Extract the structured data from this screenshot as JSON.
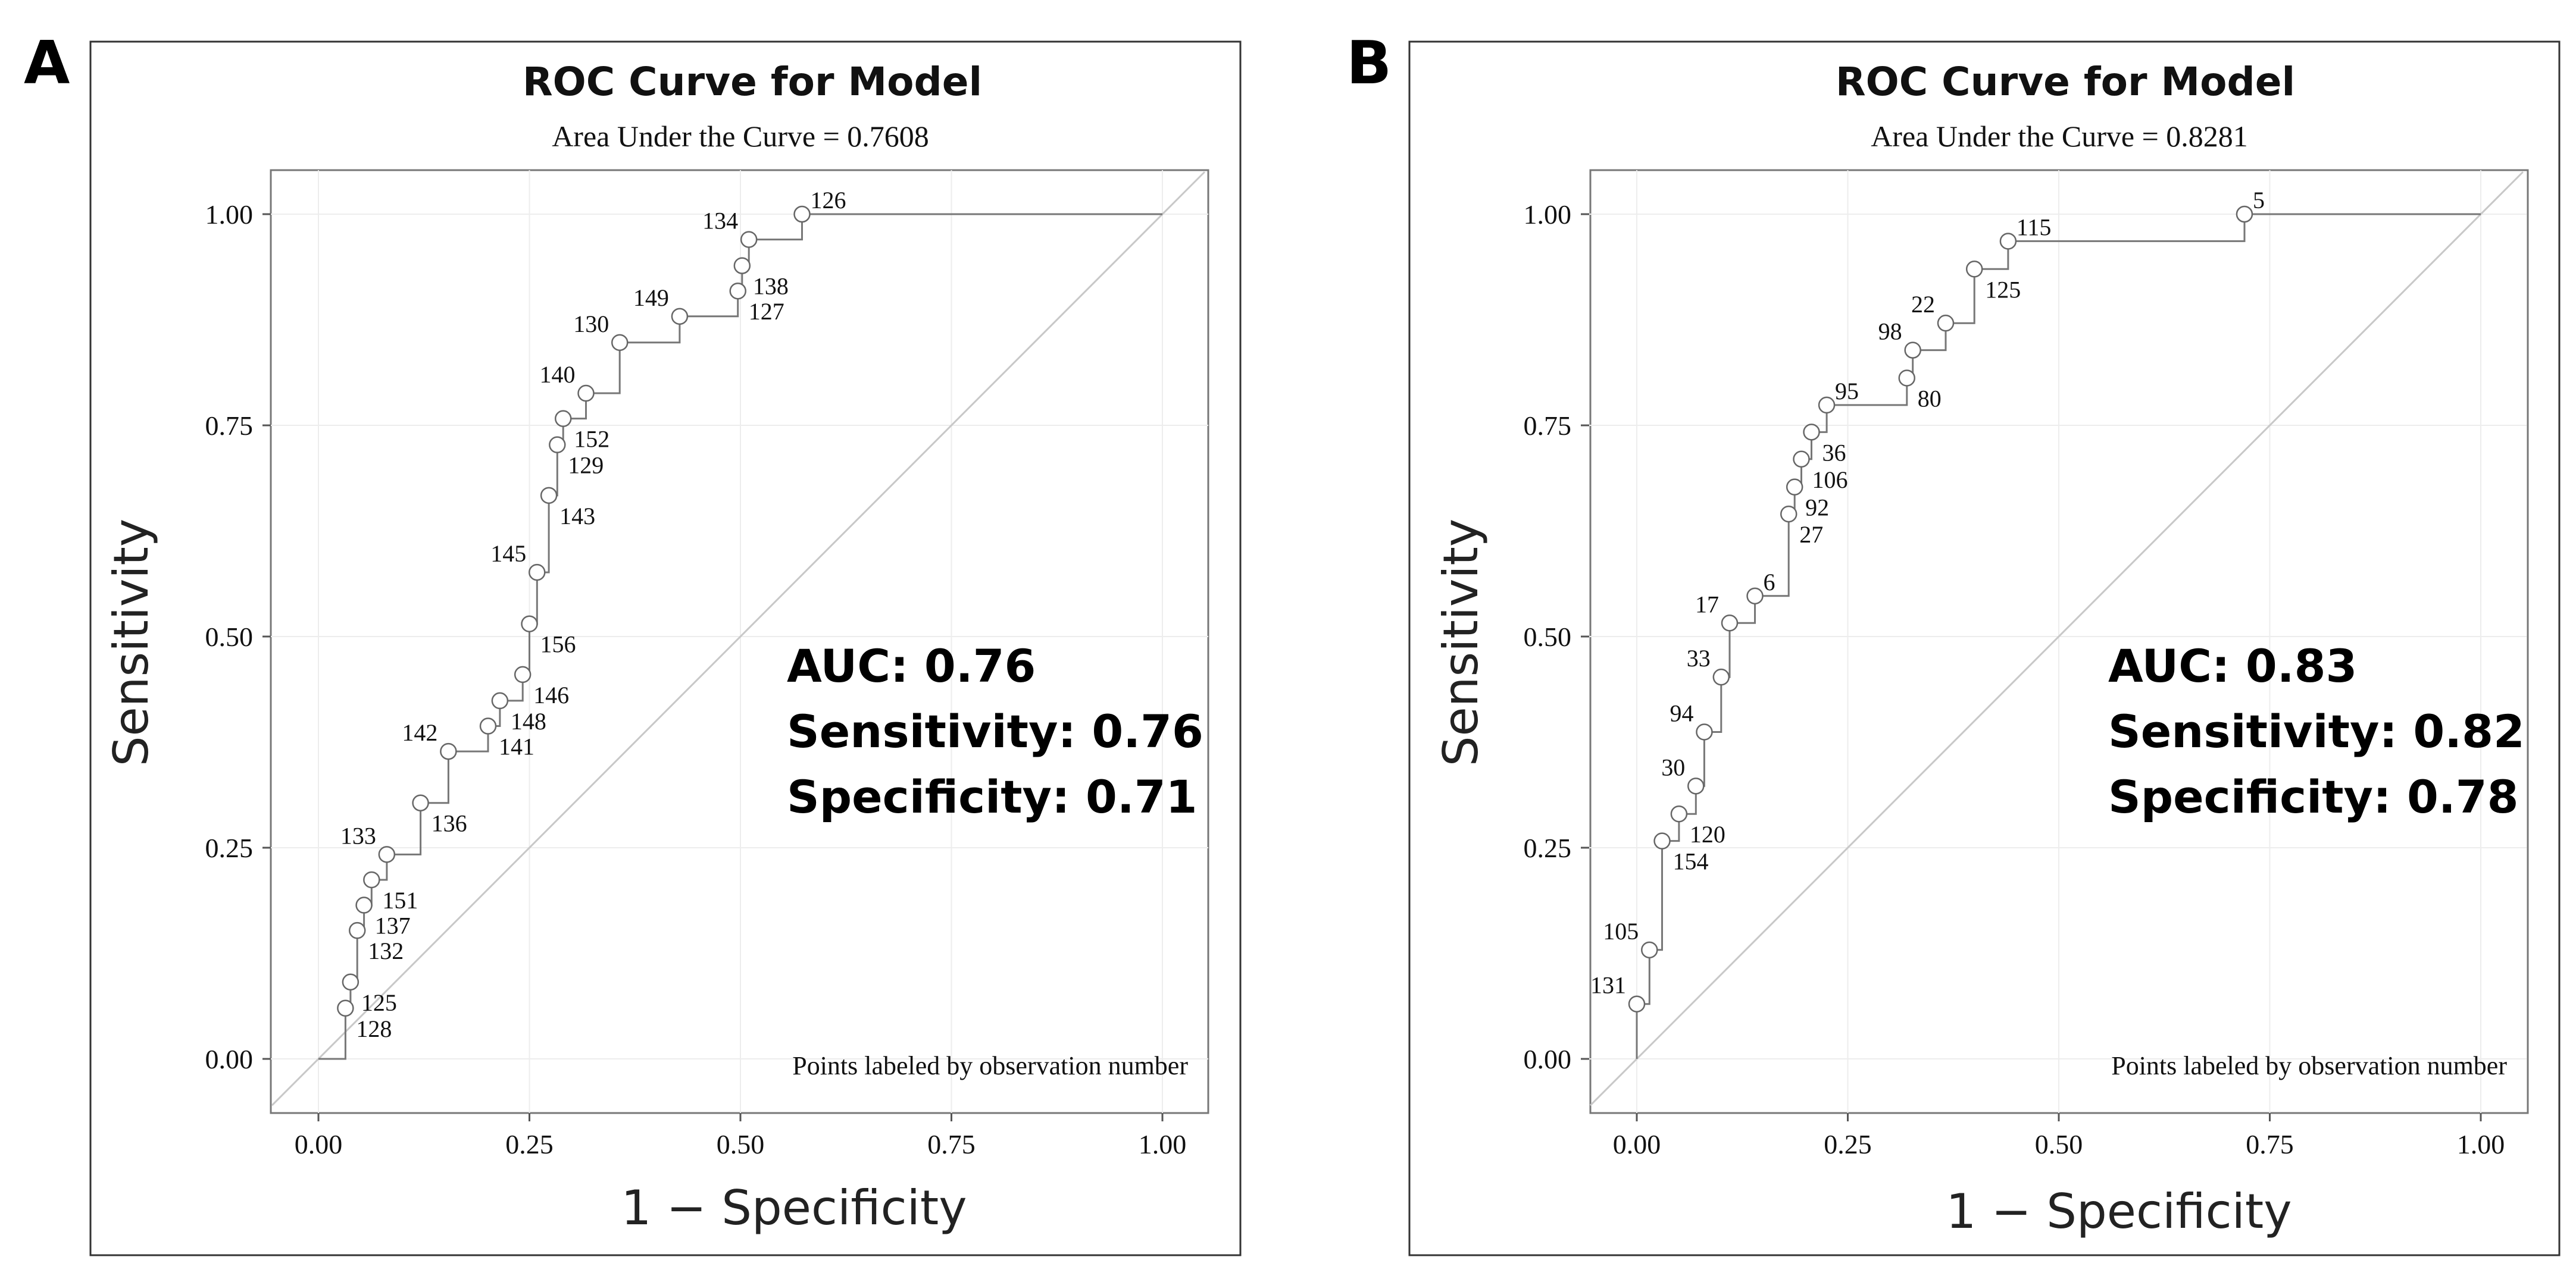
{
  "chart_data": [
    {
      "type": "line",
      "panel_label": "A",
      "title": "ROC Curve for Model",
      "subtitle": "Area Under the Curve = 0.7608",
      "xlabel": "1 − Specificity",
      "ylabel": "Sensitivity",
      "xlim": [
        0,
        1
      ],
      "ylim": [
        0,
        1
      ],
      "x_ticks": [
        "0.00",
        "0.25",
        "0.50",
        "0.75",
        "1.00"
      ],
      "y_ticks": [
        "0.00",
        "0.25",
        "0.50",
        "0.75",
        "1.00"
      ],
      "grid": true,
      "footnote": "Points labeled by observation number",
      "stats": [
        "AUC: 0.76",
        "Sensitivity: 0.76",
        "Specificity: 0.71"
      ],
      "reference_line": [
        [
          0,
          0
        ],
        [
          1,
          1
        ]
      ],
      "curve": [
        [
          0,
          0
        ],
        [
          0.032,
          0
        ],
        [
          0.032,
          0.06
        ],
        [
          0.038,
          0.06
        ],
        [
          0.038,
          0.091
        ],
        [
          0.046,
          0.091
        ],
        [
          0.046,
          0.152
        ],
        [
          0.054,
          0.152
        ],
        [
          0.054,
          0.182
        ],
        [
          0.063,
          0.182
        ],
        [
          0.063,
          0.212
        ],
        [
          0.081,
          0.212
        ],
        [
          0.081,
          0.242
        ],
        [
          0.121,
          0.242
        ],
        [
          0.121,
          0.303
        ],
        [
          0.154,
          0.303
        ],
        [
          0.154,
          0.364
        ],
        [
          0.201,
          0.364
        ],
        [
          0.201,
          0.394
        ],
        [
          0.215,
          0.394
        ],
        [
          0.215,
          0.424
        ],
        [
          0.242,
          0.424
        ],
        [
          0.242,
          0.455
        ],
        [
          0.25,
          0.455
        ],
        [
          0.25,
          0.515
        ],
        [
          0.259,
          0.515
        ],
        [
          0.259,
          0.576
        ],
        [
          0.273,
          0.576
        ],
        [
          0.273,
          0.667
        ],
        [
          0.283,
          0.667
        ],
        [
          0.283,
          0.727
        ],
        [
          0.29,
          0.727
        ],
        [
          0.29,
          0.758
        ],
        [
          0.317,
          0.758
        ],
        [
          0.317,
          0.788
        ],
        [
          0.357,
          0.788
        ],
        [
          0.357,
          0.848
        ],
        [
          0.428,
          0.848
        ],
        [
          0.428,
          0.879
        ],
        [
          0.497,
          0.879
        ],
        [
          0.497,
          0.909
        ],
        [
          0.502,
          0.909
        ],
        [
          0.502,
          0.939
        ],
        [
          0.51,
          0.939
        ],
        [
          0.51,
          0.97
        ],
        [
          0.573,
          0.97
        ],
        [
          0.573,
          1.0
        ],
        [
          1,
          1
        ]
      ],
      "points": [
        {
          "x": 0.032,
          "y": 0.06,
          "label": "128",
          "pos": "br"
        },
        {
          "x": 0.038,
          "y": 0.091,
          "label": "125",
          "pos": "br"
        },
        {
          "x": 0.046,
          "y": 0.152,
          "label": "132",
          "pos": "br"
        },
        {
          "x": 0.054,
          "y": 0.182,
          "label": "137",
          "pos": "br"
        },
        {
          "x": 0.063,
          "y": 0.212,
          "label": "151",
          "pos": "br"
        },
        {
          "x": 0.081,
          "y": 0.242,
          "label": "133",
          "pos": "tl"
        },
        {
          "x": 0.121,
          "y": 0.303,
          "label": "136",
          "pos": "br"
        },
        {
          "x": 0.154,
          "y": 0.364,
          "label": "142",
          "pos": "tl"
        },
        {
          "x": 0.201,
          "y": 0.394,
          "label": "141",
          "pos": "br"
        },
        {
          "x": 0.215,
          "y": 0.424,
          "label": "148",
          "pos": "br"
        },
        {
          "x": 0.242,
          "y": 0.455,
          "label": "146",
          "pos": "br"
        },
        {
          "x": 0.25,
          "y": 0.515,
          "label": "156",
          "pos": "br"
        },
        {
          "x": 0.259,
          "y": 0.576,
          "label": "145",
          "pos": "tl"
        },
        {
          "x": 0.273,
          "y": 0.667,
          "label": "143",
          "pos": "br"
        },
        {
          "x": 0.283,
          "y": 0.727,
          "label": "129",
          "pos": "br"
        },
        {
          "x": 0.29,
          "y": 0.758,
          "label": "152",
          "pos": "br"
        },
        {
          "x": 0.317,
          "y": 0.788,
          "label": "140",
          "pos": "tl"
        },
        {
          "x": 0.357,
          "y": 0.848,
          "label": "130",
          "pos": "tl"
        },
        {
          "x": 0.428,
          "y": 0.879,
          "label": "149",
          "pos": "tl"
        },
        {
          "x": 0.497,
          "y": 0.909,
          "label": "127",
          "pos": "br"
        },
        {
          "x": 0.502,
          "y": 0.939,
          "label": "138",
          "pos": "br"
        },
        {
          "x": 0.51,
          "y": 0.97,
          "label": "134",
          "pos": "tl"
        },
        {
          "x": 0.573,
          "y": 1.0,
          "label": "126",
          "pos": "tr"
        }
      ]
    },
    {
      "type": "line",
      "panel_label": "B",
      "title": "ROC Curve for Model",
      "subtitle": "Area Under the Curve = 0.8281",
      "xlabel": "1 − Specificity",
      "ylabel": "Sensitivity",
      "xlim": [
        0,
        1
      ],
      "ylim": [
        0,
        1
      ],
      "x_ticks": [
        "0.00",
        "0.25",
        "0.50",
        "0.75",
        "1.00"
      ],
      "y_ticks": [
        "0.00",
        "0.25",
        "0.50",
        "0.75",
        "1.00"
      ],
      "grid": true,
      "footnote": "Points labeled by observation number",
      "stats": [
        "AUC: 0.83",
        "Sensitivity: 0.82",
        "Specificity: 0.78"
      ],
      "reference_line": [
        [
          0,
          0
        ],
        [
          1,
          1
        ]
      ],
      "curve": [
        [
          0,
          0
        ],
        [
          0,
          0.065
        ],
        [
          0.015,
          0.065
        ],
        [
          0.015,
          0.129
        ],
        [
          0.03,
          0.129
        ],
        [
          0.03,
          0.258
        ],
        [
          0.05,
          0.258
        ],
        [
          0.05,
          0.29
        ],
        [
          0.07,
          0.29
        ],
        [
          0.07,
          0.323
        ],
        [
          0.08,
          0.323
        ],
        [
          0.08,
          0.387
        ],
        [
          0.1,
          0.387
        ],
        [
          0.1,
          0.452
        ],
        [
          0.11,
          0.452
        ],
        [
          0.11,
          0.516
        ],
        [
          0.14,
          0.516
        ],
        [
          0.14,
          0.548
        ],
        [
          0.18,
          0.548
        ],
        [
          0.18,
          0.645
        ],
        [
          0.187,
          0.645
        ],
        [
          0.187,
          0.677
        ],
        [
          0.195,
          0.677
        ],
        [
          0.195,
          0.71
        ],
        [
          0.207,
          0.71
        ],
        [
          0.207,
          0.742
        ],
        [
          0.225,
          0.742
        ],
        [
          0.225,
          0.774
        ],
        [
          0.32,
          0.774
        ],
        [
          0.32,
          0.806
        ],
        [
          0.327,
          0.806
        ],
        [
          0.327,
          0.839
        ],
        [
          0.366,
          0.839
        ],
        [
          0.366,
          0.871
        ],
        [
          0.4,
          0.871
        ],
        [
          0.4,
          0.935
        ],
        [
          0.44,
          0.935
        ],
        [
          0.44,
          0.968
        ],
        [
          0.72,
          0.968
        ],
        [
          0.72,
          1.0
        ],
        [
          1,
          1
        ]
      ],
      "points": [
        {
          "x": 0,
          "y": 0.065,
          "label": "131",
          "pos": "tl"
        },
        {
          "x": 0.015,
          "y": 0.129,
          "label": "105",
          "pos": "tl"
        },
        {
          "x": 0.03,
          "y": 0.258,
          "label": "154",
          "pos": "br"
        },
        {
          "x": 0.05,
          "y": 0.29,
          "label": "120",
          "pos": "br"
        },
        {
          "x": 0.07,
          "y": 0.323,
          "label": "30",
          "pos": "tl"
        },
        {
          "x": 0.08,
          "y": 0.387,
          "label": "94",
          "pos": "tl"
        },
        {
          "x": 0.1,
          "y": 0.452,
          "label": "33",
          "pos": "tl"
        },
        {
          "x": 0.11,
          "y": 0.516,
          "label": "17",
          "pos": "tl"
        },
        {
          "x": 0.14,
          "y": 0.548,
          "label": "6",
          "pos": "tr"
        },
        {
          "x": 0.18,
          "y": 0.645,
          "label": "27",
          "pos": "br"
        },
        {
          "x": 0.187,
          "y": 0.677,
          "label": "92",
          "pos": "br"
        },
        {
          "x": 0.195,
          "y": 0.71,
          "label": "106",
          "pos": "br"
        },
        {
          "x": 0.207,
          "y": 0.742,
          "label": "36",
          "pos": "br"
        },
        {
          "x": 0.225,
          "y": 0.774,
          "label": "95",
          "pos": "tr"
        },
        {
          "x": 0.32,
          "y": 0.806,
          "label": "80",
          "pos": "br"
        },
        {
          "x": 0.327,
          "y": 0.839,
          "label": "98",
          "pos": "tl"
        },
        {
          "x": 0.366,
          "y": 0.871,
          "label": "22",
          "pos": "tl"
        },
        {
          "x": 0.4,
          "y": 0.935,
          "label": "125",
          "pos": "br"
        },
        {
          "x": 0.44,
          "y": 0.968,
          "label": "115",
          "pos": "tr"
        },
        {
          "x": 0.72,
          "y": 1.0,
          "label": "5",
          "pos": "tr"
        }
      ]
    }
  ]
}
